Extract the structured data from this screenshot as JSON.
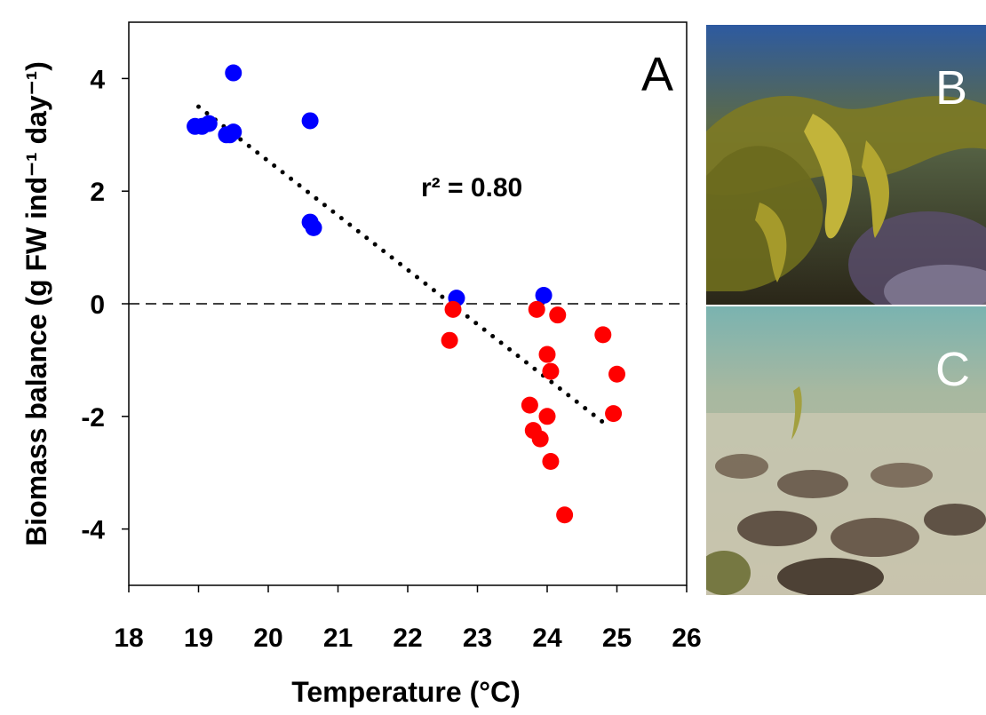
{
  "chart_data": {
    "type": "scatter",
    "panel_label": "A",
    "xlabel": "Temperature (°C)",
    "ylabel": "Biomass balance (g FW ind⁻¹ day⁻¹)",
    "xlim": [
      18,
      26
    ],
    "ylim": [
      -5,
      5
    ],
    "x_ticks": [
      "18",
      "19",
      "20",
      "21",
      "22",
      "23",
      "24",
      "25",
      "26"
    ],
    "y_ticks": [
      "4",
      "2",
      "0",
      "-2",
      "-4"
    ],
    "annotation": "r² = 0.80",
    "grid": false,
    "series": [
      {
        "color": "#0000ff",
        "points": [
          [
            18.95,
            3.15
          ],
          [
            19.05,
            3.15
          ],
          [
            19.15,
            3.2
          ],
          [
            19.4,
            3.0
          ],
          [
            19.45,
            3.0
          ],
          [
            19.5,
            4.1
          ],
          [
            19.5,
            3.05
          ],
          [
            20.6,
            3.25
          ],
          [
            20.6,
            1.45
          ],
          [
            20.65,
            1.35
          ],
          [
            22.7,
            0.1
          ],
          [
            23.95,
            0.15
          ]
        ]
      },
      {
        "color": "#ff0000",
        "points": [
          [
            22.65,
            -0.1
          ],
          [
            22.6,
            -0.65
          ],
          [
            23.85,
            -0.1
          ],
          [
            24.15,
            -0.2
          ],
          [
            24.0,
            -0.9
          ],
          [
            24.05,
            -1.2
          ],
          [
            23.75,
            -1.8
          ],
          [
            23.8,
            -2.25
          ],
          [
            23.9,
            -2.4
          ],
          [
            24.0,
            -2.0
          ],
          [
            24.05,
            -2.8
          ],
          [
            24.25,
            -3.75
          ],
          [
            24.8,
            -0.55
          ],
          [
            24.95,
            -1.95
          ],
          [
            25.0,
            -1.25
          ]
        ]
      }
    ],
    "trendline": {
      "style": "dotted",
      "color": "#000000",
      "x": [
        19.0,
        24.9
      ],
      "y": [
        3.5,
        -2.2
      ]
    },
    "reference_line": {
      "style": "dashed",
      "y": 0
    }
  },
  "photos": [
    {
      "label": "B",
      "scene": "underwater-kelp-forest",
      "colors": [
        "#2d5aa0",
        "#8a8b2c",
        "#a39a2a",
        "#4a3a55"
      ]
    },
    {
      "label": "C",
      "scene": "underwater-sparse-turf",
      "colors": [
        "#7ab3b0",
        "#cfcbb5",
        "#5a4a3c",
        "#8f9a5a"
      ]
    }
  ]
}
